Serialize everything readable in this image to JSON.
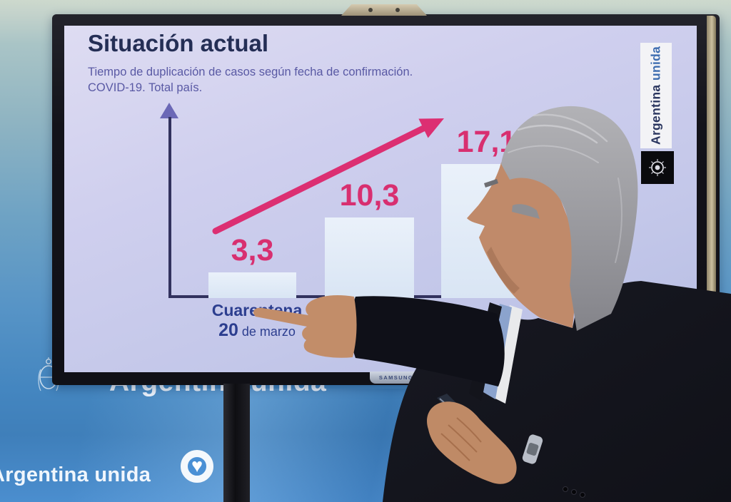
{
  "screen": {
    "title": "Situación actual",
    "subtitle_line1": "Tiempo de duplicación de casos según fecha de confirmación.",
    "subtitle_line2": "COVID-19. Total país.",
    "x_label": "Cuarentena",
    "x_sublabel_number": "20",
    "x_sublabel_text": " de marzo"
  },
  "chart_data": {
    "type": "bar",
    "title": "Situación actual",
    "subtitle": "Tiempo de duplicación de casos según fecha de confirmación. COVID-19. Total país.",
    "categories": [
      "Cuarentena (20 de marzo)",
      "",
      ""
    ],
    "values": [
      3.3,
      10.3,
      17.1
    ],
    "value_labels": [
      "3,3",
      "10,3",
      "17,1"
    ],
    "annotations": [
      "rising trend arrow"
    ],
    "bar_color": "#e3ecf8",
    "value_label_color": "#d82f70",
    "axis_color": "#32325e",
    "background": "#c9cdeb"
  },
  "side_banner": {
    "word1": "Argentina",
    "word2": "unida"
  },
  "tv": {
    "brand": "SAMSUNG"
  },
  "wall": {
    "big_text": "Argentina unida",
    "band_text": "Argentina unida",
    "heart_icon": "♥"
  },
  "colors": {
    "accent_pink": "#d82f70",
    "title_navy": "#242e55",
    "subtitle_purple": "#5959a4",
    "x_label_blue": "#2c3e8f",
    "wall_blue": "#4487c5",
    "banner_word1": "#2a355f",
    "banner_word2": "#3e6db0",
    "screen_lavender": "#c9cdeb"
  }
}
